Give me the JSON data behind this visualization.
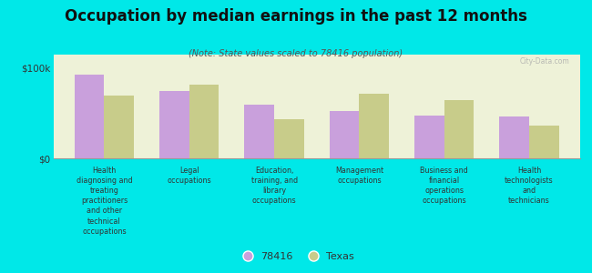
{
  "title": "Occupation by median earnings in the past 12 months",
  "subtitle": "(Note: State values scaled to 78416 population)",
  "categories": [
    "Health\ndiagnosing and\ntreating\npractitioners\nand other\ntechnical\noccupations",
    "Legal\noccupations",
    "Education,\ntraining, and\nlibrary\noccupations",
    "Management\noccupations",
    "Business and\nfinancial\noperations\noccupations",
    "Health\ntechnologists\nand\ntechnicians"
  ],
  "values_78416": [
    93000,
    75000,
    60000,
    52000,
    47000,
    46000
  ],
  "values_texas": [
    70000,
    82000,
    43000,
    72000,
    65000,
    36000
  ],
  "color_78416": "#c9a0dc",
  "color_texas": "#c8cc8a",
  "bar_width": 0.35,
  "ylim": [
    0,
    115000
  ],
  "ytick_labels": [
    "$0",
    "$100k"
  ],
  "ytick_vals": [
    0,
    100000
  ],
  "background_color": "#00e8e8",
  "plot_bg_color": "#eef2d8",
  "legend_labels": [
    "78416",
    "Texas"
  ],
  "watermark": "City-Data.com"
}
